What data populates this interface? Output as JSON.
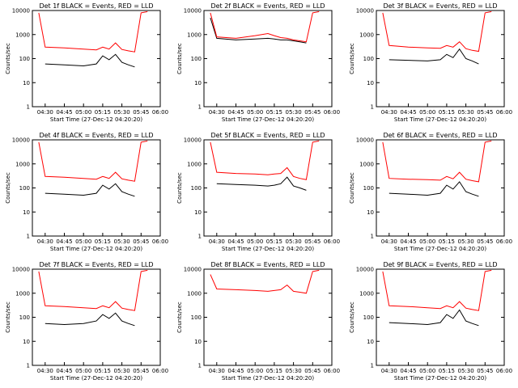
{
  "common": {
    "xlabel": "Start Time (27-Dec-12 04:20:20)",
    "ylabel": "Counts/sec",
    "x_ticks": [
      "04:30",
      "04:45",
      "05:00",
      "05:15",
      "05:30",
      "05:45",
      "06:00"
    ],
    "y_ticks": [
      "1",
      "10",
      "100",
      "1000",
      "10000"
    ],
    "colors": {
      "events": "#000000",
      "lld": "#ff0000"
    }
  },
  "chart_data": [
    {
      "type": "line",
      "title": "Det 1f BLACK = Events, RED = LLD",
      "y_scale": "log",
      "ylim": [
        1,
        10000
      ],
      "xlim": [
        "04:20",
        "06:00"
      ],
      "x": [
        "04:25",
        "04:30",
        "04:45",
        "05:00",
        "05:10",
        "05:15",
        "05:20",
        "05:25",
        "05:30",
        "05:35",
        "05:40",
        "05:45",
        "05:50"
      ],
      "series": [
        {
          "name": "Events",
          "values": [
            null,
            60,
            55,
            50,
            60,
            130,
            90,
            150,
            70,
            55,
            45,
            null,
            null
          ]
        },
        {
          "name": "LLD",
          "values": [
            8000,
            300,
            280,
            250,
            230,
            300,
            250,
            450,
            240,
            210,
            190,
            8000,
            9000
          ]
        }
      ]
    },
    {
      "type": "line",
      "title": "Det 2f BLACK = Events, RED = LLD",
      "y_scale": "log",
      "ylim": [
        1,
        10000
      ],
      "xlim": [
        "04:20",
        "06:00"
      ],
      "x": [
        "04:25",
        "04:30",
        "04:45",
        "05:00",
        "05:10",
        "05:15",
        "05:20",
        "05:25",
        "05:30",
        "05:35",
        "05:40",
        "05:45",
        "05:50"
      ],
      "series": [
        {
          "name": "Events",
          "values": [
            5000,
            700,
            600,
            650,
            700,
            650,
            600,
            600,
            550,
            500,
            450,
            null,
            null
          ]
        },
        {
          "name": "LLD",
          "values": [
            8000,
            800,
            700,
            900,
            1100,
            900,
            750,
            700,
            600,
            550,
            500,
            8000,
            9000
          ]
        }
      ]
    },
    {
      "type": "line",
      "title": "Det 3f BLACK = Events, RED = LLD",
      "y_scale": "log",
      "ylim": [
        1,
        10000
      ],
      "xlim": [
        "04:20",
        "06:00"
      ],
      "x": [
        "04:25",
        "04:30",
        "04:45",
        "05:00",
        "05:10",
        "05:15",
        "05:20",
        "05:25",
        "05:30",
        "05:35",
        "05:40",
        "05:45",
        "05:50"
      ],
      "series": [
        {
          "name": "Events",
          "values": [
            null,
            90,
            85,
            80,
            90,
            150,
            110,
            250,
            100,
            80,
            60,
            null,
            null
          ]
        },
        {
          "name": "LLD",
          "values": [
            8000,
            350,
            300,
            280,
            270,
            350,
            300,
            500,
            260,
            220,
            200,
            8000,
            9000
          ]
        }
      ]
    },
    {
      "type": "line",
      "title": "Det 4f BLACK = Events, RED = LLD",
      "y_scale": "log",
      "ylim": [
        1,
        10000
      ],
      "xlim": [
        "04:20",
        "06:00"
      ],
      "x": [
        "04:25",
        "04:30",
        "04:45",
        "05:00",
        "05:10",
        "05:15",
        "05:20",
        "05:25",
        "05:30",
        "05:35",
        "05:40",
        "05:45",
        "05:50"
      ],
      "series": [
        {
          "name": "Events",
          "values": [
            null,
            60,
            55,
            50,
            60,
            130,
            90,
            150,
            70,
            55,
            45,
            null,
            null
          ]
        },
        {
          "name": "LLD",
          "values": [
            8000,
            300,
            280,
            250,
            230,
            300,
            250,
            450,
            240,
            210,
            190,
            8000,
            9000
          ]
        }
      ]
    },
    {
      "type": "line",
      "title": "Det 5f BLACK = Events, RED = LLD",
      "y_scale": "log",
      "ylim": [
        1,
        10000
      ],
      "xlim": [
        "04:20",
        "06:00"
      ],
      "x": [
        "04:25",
        "04:30",
        "04:45",
        "05:00",
        "05:10",
        "05:15",
        "05:20",
        "05:25",
        "05:30",
        "05:35",
        "05:40",
        "05:45",
        "05:50"
      ],
      "series": [
        {
          "name": "Events",
          "values": [
            null,
            150,
            140,
            130,
            120,
            130,
            150,
            280,
            120,
            100,
            80,
            null,
            null
          ]
        },
        {
          "name": "LLD",
          "values": [
            8000,
            450,
            400,
            380,
            350,
            380,
            400,
            700,
            300,
            250,
            220,
            8000,
            9000
          ]
        }
      ]
    },
    {
      "type": "line",
      "title": "Det 6f BLACK = Events, RED = LLD",
      "y_scale": "log",
      "ylim": [
        1,
        10000
      ],
      "xlim": [
        "04:20",
        "06:00"
      ],
      "x": [
        "04:25",
        "04:30",
        "04:45",
        "05:00",
        "05:10",
        "05:15",
        "05:20",
        "05:25",
        "05:30",
        "05:35",
        "05:40",
        "05:45",
        "05:50"
      ],
      "series": [
        {
          "name": "Events",
          "values": [
            null,
            60,
            55,
            50,
            60,
            130,
            90,
            180,
            70,
            55,
            45,
            null,
            null
          ]
        },
        {
          "name": "LLD",
          "values": [
            8000,
            250,
            230,
            220,
            210,
            300,
            240,
            450,
            230,
            200,
            180,
            8000,
            9000
          ]
        }
      ]
    },
    {
      "type": "line",
      "title": "Det 7f BLACK = Events, RED = LLD",
      "y_scale": "log",
      "ylim": [
        1,
        10000
      ],
      "xlim": [
        "04:20",
        "06:00"
      ],
      "x": [
        "04:25",
        "04:30",
        "04:45",
        "05:00",
        "05:10",
        "05:15",
        "05:20",
        "05:25",
        "05:30",
        "05:35",
        "05:40",
        "05:45",
        "05:50"
      ],
      "series": [
        {
          "name": "Events",
          "values": [
            null,
            55,
            50,
            55,
            70,
            130,
            90,
            150,
            70,
            55,
            45,
            null,
            null
          ]
        },
        {
          "name": "LLD",
          "values": [
            8000,
            300,
            280,
            250,
            230,
            300,
            250,
            450,
            240,
            210,
            190,
            8000,
            9000
          ]
        }
      ]
    },
    {
      "type": "line",
      "title": "Det 8f BLACK = Events, RED = LLD",
      "y_scale": "log",
      "ylim": [
        1,
        10000
      ],
      "xlim": [
        "04:20",
        "06:00"
      ],
      "x": [
        "04:25",
        "04:30",
        "04:45",
        "05:00",
        "05:10",
        "05:15",
        "05:20",
        "05:25",
        "05:30",
        "05:35",
        "05:40",
        "05:45",
        "05:50"
      ],
      "series": [
        {
          "name": "Events",
          "values": [
            null,
            null,
            null,
            null,
            null,
            null,
            null,
            null,
            null,
            null,
            null,
            null,
            null
          ]
        },
        {
          "name": "LLD",
          "values": [
            6000,
            1500,
            1400,
            1300,
            1200,
            1300,
            1400,
            2200,
            1200,
            1100,
            1000,
            8000,
            9000
          ]
        }
      ]
    },
    {
      "type": "line",
      "title": "Det 9f BLACK = Events, RED = LLD",
      "y_scale": "log",
      "ylim": [
        1,
        10000
      ],
      "xlim": [
        "04:20",
        "06:00"
      ],
      "x": [
        "04:25",
        "04:30",
        "04:45",
        "05:00",
        "05:10",
        "05:15",
        "05:20",
        "05:25",
        "05:30",
        "05:35",
        "05:40",
        "05:45",
        "05:50"
      ],
      "series": [
        {
          "name": "Events",
          "values": [
            null,
            60,
            55,
            50,
            60,
            130,
            90,
            200,
            70,
            55,
            45,
            null,
            null
          ]
        },
        {
          "name": "LLD",
          "values": [
            8000,
            300,
            280,
            250,
            230,
            300,
            250,
            450,
            240,
            210,
            190,
            8000,
            9000
          ]
        }
      ]
    }
  ]
}
